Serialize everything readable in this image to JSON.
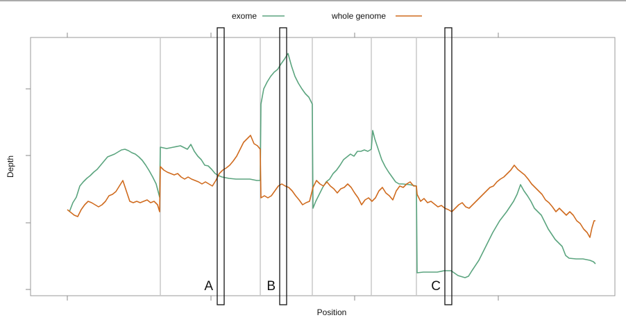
{
  "chart_data": {
    "type": "line",
    "title": "",
    "xlabel": "Position",
    "ylabel": "Depth",
    "x_tick_labels": [],
    "y_tick_labels": [],
    "grid": true,
    "legend": {
      "placement": "top"
    },
    "colors": {
      "exome": "#5aa47e",
      "whole genome": "#cf6a1d"
    },
    "series": [
      {
        "name": "exome",
        "points": [
          [
            100,
            305
          ],
          [
            105,
            292
          ],
          [
            110,
            284
          ],
          [
            115,
            268
          ],
          [
            120,
            262
          ],
          [
            125,
            257
          ],
          [
            130,
            253
          ],
          [
            135,
            248
          ],
          [
            140,
            244
          ],
          [
            145,
            238
          ],
          [
            150,
            232
          ],
          [
            155,
            226
          ],
          [
            160,
            224
          ],
          [
            165,
            222
          ],
          [
            170,
            219
          ],
          [
            175,
            216
          ],
          [
            180,
            215
          ],
          [
            185,
            217
          ],
          [
            190,
            220
          ],
          [
            195,
            222
          ],
          [
            200,
            226
          ],
          [
            205,
            231
          ],
          [
            210,
            238
          ],
          [
            215,
            246
          ],
          [
            220,
            255
          ],
          [
            225,
            265
          ],
          [
            230,
            284
          ],
          [
            231,
            212
          ],
          [
            240,
            214
          ],
          [
            250,
            212
          ],
          [
            260,
            210
          ],
          [
            270,
            215
          ],
          [
            275,
            208
          ],
          [
            280,
            218
          ],
          [
            285,
            225
          ],
          [
            290,
            230
          ],
          [
            295,
            238
          ],
          [
            300,
            239
          ],
          [
            305,
            244
          ],
          [
            310,
            250
          ],
          [
            315,
            253
          ],
          [
            320,
            255
          ],
          [
            330,
            257
          ],
          [
            340,
            258
          ],
          [
            350,
            258
          ],
          [
            360,
            258
          ],
          [
            370,
            260
          ],
          [
            375,
            260
          ],
          [
            376,
            150
          ],
          [
            380,
            128
          ],
          [
            385,
            118
          ],
          [
            390,
            110
          ],
          [
            395,
            104
          ],
          [
            400,
            100
          ],
          [
            405,
            92
          ],
          [
            410,
            85
          ],
          [
            415,
            77
          ],
          [
            420,
            95
          ],
          [
            425,
            110
          ],
          [
            430,
            120
          ],
          [
            435,
            128
          ],
          [
            440,
            135
          ],
          [
            445,
            140
          ],
          [
            450,
            150
          ],
          [
            451,
            300
          ],
          [
            455,
            290
          ],
          [
            460,
            280
          ],
          [
            465,
            270
          ],
          [
            470,
            262
          ],
          [
            475,
            258
          ],
          [
            480,
            250
          ],
          [
            485,
            245
          ],
          [
            490,
            238
          ],
          [
            495,
            230
          ],
          [
            500,
            226
          ],
          [
            505,
            222
          ],
          [
            510,
            225
          ],
          [
            515,
            218
          ],
          [
            520,
            218
          ],
          [
            525,
            216
          ],
          [
            530,
            218
          ],
          [
            535,
            215
          ],
          [
            537,
            188
          ],
          [
            540,
            200
          ],
          [
            545,
            215
          ],
          [
            550,
            230
          ],
          [
            555,
            240
          ],
          [
            560,
            248
          ],
          [
            565,
            255
          ],
          [
            570,
            262
          ],
          [
            575,
            265
          ],
          [
            580,
            265
          ],
          [
            590,
            266
          ],
          [
            600,
            268
          ],
          [
            601,
            393
          ],
          [
            610,
            392
          ],
          [
            620,
            392
          ],
          [
            630,
            392
          ],
          [
            640,
            390
          ],
          [
            650,
            390
          ],
          [
            660,
            397
          ],
          [
            670,
            400
          ],
          [
            675,
            398
          ],
          [
            680,
            390
          ],
          [
            690,
            375
          ],
          [
            700,
            355
          ],
          [
            710,
            335
          ],
          [
            720,
            318
          ],
          [
            730,
            305
          ],
          [
            740,
            290
          ],
          [
            745,
            280
          ],
          [
            750,
            266
          ],
          [
            755,
            275
          ],
          [
            760,
            282
          ],
          [
            765,
            290
          ],
          [
            770,
            300
          ],
          [
            775,
            305
          ],
          [
            780,
            310
          ],
          [
            790,
            330
          ],
          [
            800,
            345
          ],
          [
            810,
            355
          ],
          [
            815,
            368
          ],
          [
            820,
            372
          ],
          [
            830,
            373
          ],
          [
            840,
            373
          ],
          [
            850,
            375
          ],
          [
            855,
            377
          ],
          [
            858,
            380
          ]
        ]
      },
      {
        "name": "whole genome",
        "points": [
          [
            97,
            302
          ],
          [
            102,
            306
          ],
          [
            107,
            310
          ],
          [
            112,
            312
          ],
          [
            117,
            302
          ],
          [
            122,
            295
          ],
          [
            127,
            290
          ],
          [
            132,
            292
          ],
          [
            137,
            295
          ],
          [
            142,
            298
          ],
          [
            147,
            295
          ],
          [
            152,
            290
          ],
          [
            157,
            282
          ],
          [
            162,
            280
          ],
          [
            167,
            276
          ],
          [
            172,
            268
          ],
          [
            177,
            260
          ],
          [
            182,
            275
          ],
          [
            187,
            290
          ],
          [
            192,
            292
          ],
          [
            197,
            290
          ],
          [
            202,
            292
          ],
          [
            207,
            290
          ],
          [
            212,
            288
          ],
          [
            217,
            292
          ],
          [
            222,
            290
          ],
          [
            227,
            295
          ],
          [
            230,
            305
          ],
          [
            231,
            240
          ],
          [
            236,
            245
          ],
          [
            241,
            248
          ],
          [
            246,
            250
          ],
          [
            251,
            252
          ],
          [
            256,
            250
          ],
          [
            261,
            255
          ],
          [
            266,
            258
          ],
          [
            271,
            255
          ],
          [
            276,
            258
          ],
          [
            281,
            260
          ],
          [
            286,
            262
          ],
          [
            291,
            265
          ],
          [
            296,
            262
          ],
          [
            301,
            265
          ],
          [
            306,
            268
          ],
          [
            311,
            260
          ],
          [
            316,
            250
          ],
          [
            321,
            245
          ],
          [
            326,
            242
          ],
          [
            331,
            238
          ],
          [
            336,
            232
          ],
          [
            341,
            225
          ],
          [
            346,
            215
          ],
          [
            351,
            205
          ],
          [
            356,
            200
          ],
          [
            361,
            195
          ],
          [
            366,
            207
          ],
          [
            371,
            210
          ],
          [
            375,
            215
          ],
          [
            376,
            285
          ],
          [
            381,
            282
          ],
          [
            386,
            285
          ],
          [
            391,
            282
          ],
          [
            396,
            275
          ],
          [
            401,
            268
          ],
          [
            406,
            265
          ],
          [
            411,
            268
          ],
          [
            416,
            270
          ],
          [
            421,
            275
          ],
          [
            426,
            282
          ],
          [
            431,
            288
          ],
          [
            436,
            295
          ],
          [
            441,
            292
          ],
          [
            446,
            290
          ],
          [
            451,
            270
          ],
          [
            456,
            260
          ],
          [
            461,
            265
          ],
          [
            466,
            268
          ],
          [
            471,
            262
          ],
          [
            476,
            268
          ],
          [
            481,
            272
          ],
          [
            486,
            278
          ],
          [
            491,
            272
          ],
          [
            496,
            270
          ],
          [
            501,
            265
          ],
          [
            506,
            270
          ],
          [
            511,
            278
          ],
          [
            516,
            285
          ],
          [
            521,
            295
          ],
          [
            526,
            288
          ],
          [
            531,
            285
          ],
          [
            536,
            290
          ],
          [
            541,
            285
          ],
          [
            546,
            275
          ],
          [
            551,
            270
          ],
          [
            556,
            278
          ],
          [
            561,
            282
          ],
          [
            566,
            288
          ],
          [
            571,
            275
          ],
          [
            576,
            268
          ],
          [
            581,
            270
          ],
          [
            586,
            265
          ],
          [
            591,
            262
          ],
          [
            596,
            268
          ],
          [
            600,
            268
          ],
          [
            601,
            280
          ],
          [
            606,
            290
          ],
          [
            611,
            286
          ],
          [
            616,
            292
          ],
          [
            621,
            290
          ],
          [
            626,
            294
          ],
          [
            631,
            298
          ],
          [
            636,
            296
          ],
          [
            641,
            300
          ],
          [
            646,
            302
          ],
          [
            651,
            305
          ],
          [
            656,
            300
          ],
          [
            661,
            295
          ],
          [
            666,
            292
          ],
          [
            671,
            298
          ],
          [
            676,
            300
          ],
          [
            681,
            295
          ],
          [
            686,
            290
          ],
          [
            691,
            285
          ],
          [
            696,
            280
          ],
          [
            701,
            275
          ],
          [
            706,
            270
          ],
          [
            711,
            268
          ],
          [
            716,
            262
          ],
          [
            721,
            258
          ],
          [
            726,
            255
          ],
          [
            731,
            250
          ],
          [
            736,
            245
          ],
          [
            741,
            238
          ],
          [
            746,
            244
          ],
          [
            751,
            248
          ],
          [
            756,
            252
          ],
          [
            761,
            258
          ],
          [
            766,
            265
          ],
          [
            771,
            270
          ],
          [
            776,
            275
          ],
          [
            781,
            280
          ],
          [
            786,
            288
          ],
          [
            791,
            292
          ],
          [
            796,
            298
          ],
          [
            801,
            305
          ],
          [
            806,
            300
          ],
          [
            811,
            305
          ],
          [
            816,
            310
          ],
          [
            821,
            305
          ],
          [
            826,
            310
          ],
          [
            831,
            318
          ],
          [
            836,
            322
          ],
          [
            841,
            330
          ],
          [
            846,
            335
          ],
          [
            850,
            342
          ],
          [
            853,
            328
          ],
          [
            856,
            318
          ],
          [
            858,
            318
          ]
        ]
      }
    ],
    "segment_boundaries": [
      231,
      375,
      450,
      535,
      600
    ],
    "x_tick_positions": [
      97,
      304,
      511,
      718
    ],
    "y_tick_positions": [
      417,
      321,
      224,
      128
    ],
    "highlight_boxes": [
      {
        "label": "A",
        "x_center": 318
      },
      {
        "label": "B",
        "x_center": 408
      },
      {
        "label": "C",
        "x_center": 646
      }
    ]
  }
}
